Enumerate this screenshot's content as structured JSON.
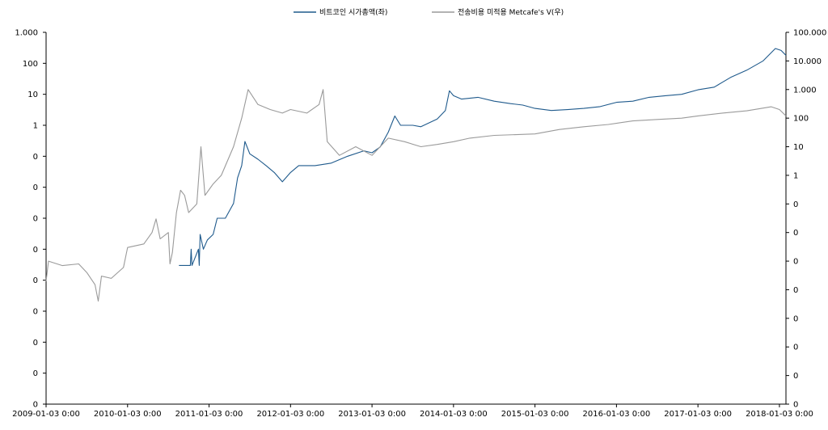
{
  "chart_data": {
    "type": "line",
    "legend": {
      "placement": "top-center",
      "entries": [
        "비트코인 시가총액(좌)",
        "전송비용 미적용 Metcafe's V(우)"
      ]
    },
    "x_ticks": [
      "2009-01-03 0:00",
      "2010-01-03 0:00",
      "2011-01-03 0:00",
      "2012-01-03 0:00",
      "2013-01-03 0:00",
      "2014-01-03 0:00",
      "2015-01-03 0:00",
      "2016-01-03 0:00",
      "2017-01-03 0:00",
      "2018-01-03 0:00"
    ],
    "x_range": [
      2009.0,
      2018.08
    ],
    "y_left": {
      "scale": "log",
      "tick_labels": [
        "0",
        "0",
        "0",
        "0",
        "0",
        "0",
        "0",
        "0",
        "0",
        "1",
        "10",
        "100",
        "1.000"
      ],
      "tick_values": [
        1e-09,
        1e-08,
        1e-07,
        1e-06,
        1e-05,
        0.0001,
        0.001,
        0.01,
        0.1,
        1,
        10,
        100,
        1000
      ]
    },
    "y_right": {
      "scale": "log",
      "tick_labels": [
        "0",
        "0",
        "0",
        "0",
        "0",
        "0",
        "0",
        "0",
        "1",
        "10",
        "100",
        "1.000",
        "10.000",
        "100.000"
      ],
      "tick_values": [
        1e-08,
        1e-07,
        1e-06,
        1e-05,
        0.0001,
        0.001,
        0.01,
        0.1,
        1,
        10,
        100,
        1000,
        10000,
        100000
      ]
    },
    "grid": false,
    "series": [
      {
        "name": "비트코인 시가총액(좌)",
        "axis": "left",
        "color": "#1f5a8c",
        "points": [
          [
            2010.63,
            3e-05
          ],
          [
            2010.77,
            3e-05
          ],
          [
            2010.78,
            0.0001
          ],
          [
            2010.79,
            3e-05
          ],
          [
            2010.87,
            0.0001
          ],
          [
            2010.88,
            3e-05
          ],
          [
            2010.89,
            0.0003
          ],
          [
            2010.93,
            0.0001
          ],
          [
            2010.98,
            0.0002
          ],
          [
            2011.05,
            0.0003
          ],
          [
            2011.1,
            0.001
          ],
          [
            2011.2,
            0.001
          ],
          [
            2011.3,
            0.003
          ],
          [
            2011.35,
            0.02
          ],
          [
            2011.4,
            0.05
          ],
          [
            2011.44,
            0.3
          ],
          [
            2011.5,
            0.12
          ],
          [
            2011.6,
            0.08
          ],
          [
            2011.7,
            0.05
          ],
          [
            2011.8,
            0.03
          ],
          [
            2011.9,
            0.015
          ],
          [
            2012.0,
            0.03
          ],
          [
            2012.1,
            0.05
          ],
          [
            2012.3,
            0.05
          ],
          [
            2012.5,
            0.06
          ],
          [
            2012.7,
            0.1
          ],
          [
            2012.9,
            0.15
          ],
          [
            2013.0,
            0.13
          ],
          [
            2013.1,
            0.2
          ],
          [
            2013.2,
            0.6
          ],
          [
            2013.28,
            2.0
          ],
          [
            2013.35,
            1.0
          ],
          [
            2013.5,
            1.0
          ],
          [
            2013.6,
            0.9
          ],
          [
            2013.7,
            1.2
          ],
          [
            2013.8,
            1.6
          ],
          [
            2013.9,
            3.0
          ],
          [
            2013.95,
            13.0
          ],
          [
            2014.0,
            9.0
          ],
          [
            2014.1,
            7.0
          ],
          [
            2014.3,
            8.0
          ],
          [
            2014.5,
            6.0
          ],
          [
            2014.7,
            5.0
          ],
          [
            2014.85,
            4.5
          ],
          [
            2015.0,
            3.5
          ],
          [
            2015.2,
            3.0
          ],
          [
            2015.4,
            3.2
          ],
          [
            2015.6,
            3.5
          ],
          [
            2015.8,
            4.0
          ],
          [
            2016.0,
            5.5
          ],
          [
            2016.2,
            6.0
          ],
          [
            2016.4,
            8.0
          ],
          [
            2016.6,
            9.0
          ],
          [
            2016.8,
            10.0
          ],
          [
            2017.0,
            14.0
          ],
          [
            2017.2,
            17.0
          ],
          [
            2017.4,
            35.0
          ],
          [
            2017.6,
            60.0
          ],
          [
            2017.8,
            120.0
          ],
          [
            2017.95,
            300.0
          ],
          [
            2018.02,
            260.0
          ],
          [
            2018.08,
            180.0
          ]
        ]
      },
      {
        "name": "전송비용 미적용 Metcafe's V(우)",
        "axis": "right",
        "color": "#9a9a9a",
        "points": [
          [
            2009.0,
            0.0002
          ],
          [
            2009.03,
            0.001
          ],
          [
            2009.2,
            0.0007
          ],
          [
            2009.4,
            0.0008
          ],
          [
            2009.5,
            0.0004
          ],
          [
            2009.6,
            0.00015
          ],
          [
            2009.64,
            4e-05
          ],
          [
            2009.68,
            0.0003
          ],
          [
            2009.8,
            0.00025
          ],
          [
            2009.95,
            0.0006
          ],
          [
            2010.0,
            0.003
          ],
          [
            2010.2,
            0.004
          ],
          [
            2010.3,
            0.01
          ],
          [
            2010.35,
            0.03
          ],
          [
            2010.4,
            0.006
          ],
          [
            2010.5,
            0.01
          ],
          [
            2010.52,
            0.0008
          ],
          [
            2010.55,
            0.002
          ],
          [
            2010.6,
            0.05
          ],
          [
            2010.65,
            0.3
          ],
          [
            2010.7,
            0.2
          ],
          [
            2010.75,
            0.05
          ],
          [
            2010.85,
            0.1
          ],
          [
            2010.9,
            10.0
          ],
          [
            2010.95,
            0.2
          ],
          [
            2011.05,
            0.5
          ],
          [
            2011.15,
            1.0
          ],
          [
            2011.3,
            10.0
          ],
          [
            2011.4,
            100.0
          ],
          [
            2011.48,
            1000.0
          ],
          [
            2011.6,
            300.0
          ],
          [
            2011.75,
            200.0
          ],
          [
            2011.9,
            150.0
          ],
          [
            2012.0,
            200.0
          ],
          [
            2012.2,
            150.0
          ],
          [
            2012.35,
            300.0
          ],
          [
            2012.4,
            1000.0
          ],
          [
            2012.45,
            15.0
          ],
          [
            2012.6,
            5.0
          ],
          [
            2012.8,
            10.0
          ],
          [
            2013.0,
            5.0
          ],
          [
            2013.2,
            20.0
          ],
          [
            2013.4,
            15.0
          ],
          [
            2013.6,
            10.0
          ],
          [
            2013.8,
            12.0
          ],
          [
            2014.0,
            15.0
          ],
          [
            2014.2,
            20.0
          ],
          [
            2014.5,
            25.0
          ],
          [
            2015.0,
            28.0
          ],
          [
            2015.3,
            40.0
          ],
          [
            2015.6,
            50.0
          ],
          [
            2015.9,
            60.0
          ],
          [
            2016.2,
            80.0
          ],
          [
            2016.5,
            90.0
          ],
          [
            2016.8,
            100.0
          ],
          [
            2017.0,
            120.0
          ],
          [
            2017.3,
            150.0
          ],
          [
            2017.6,
            180.0
          ],
          [
            2017.9,
            250.0
          ],
          [
            2018.0,
            200.0
          ],
          [
            2018.08,
            120.0
          ]
        ]
      }
    ]
  }
}
